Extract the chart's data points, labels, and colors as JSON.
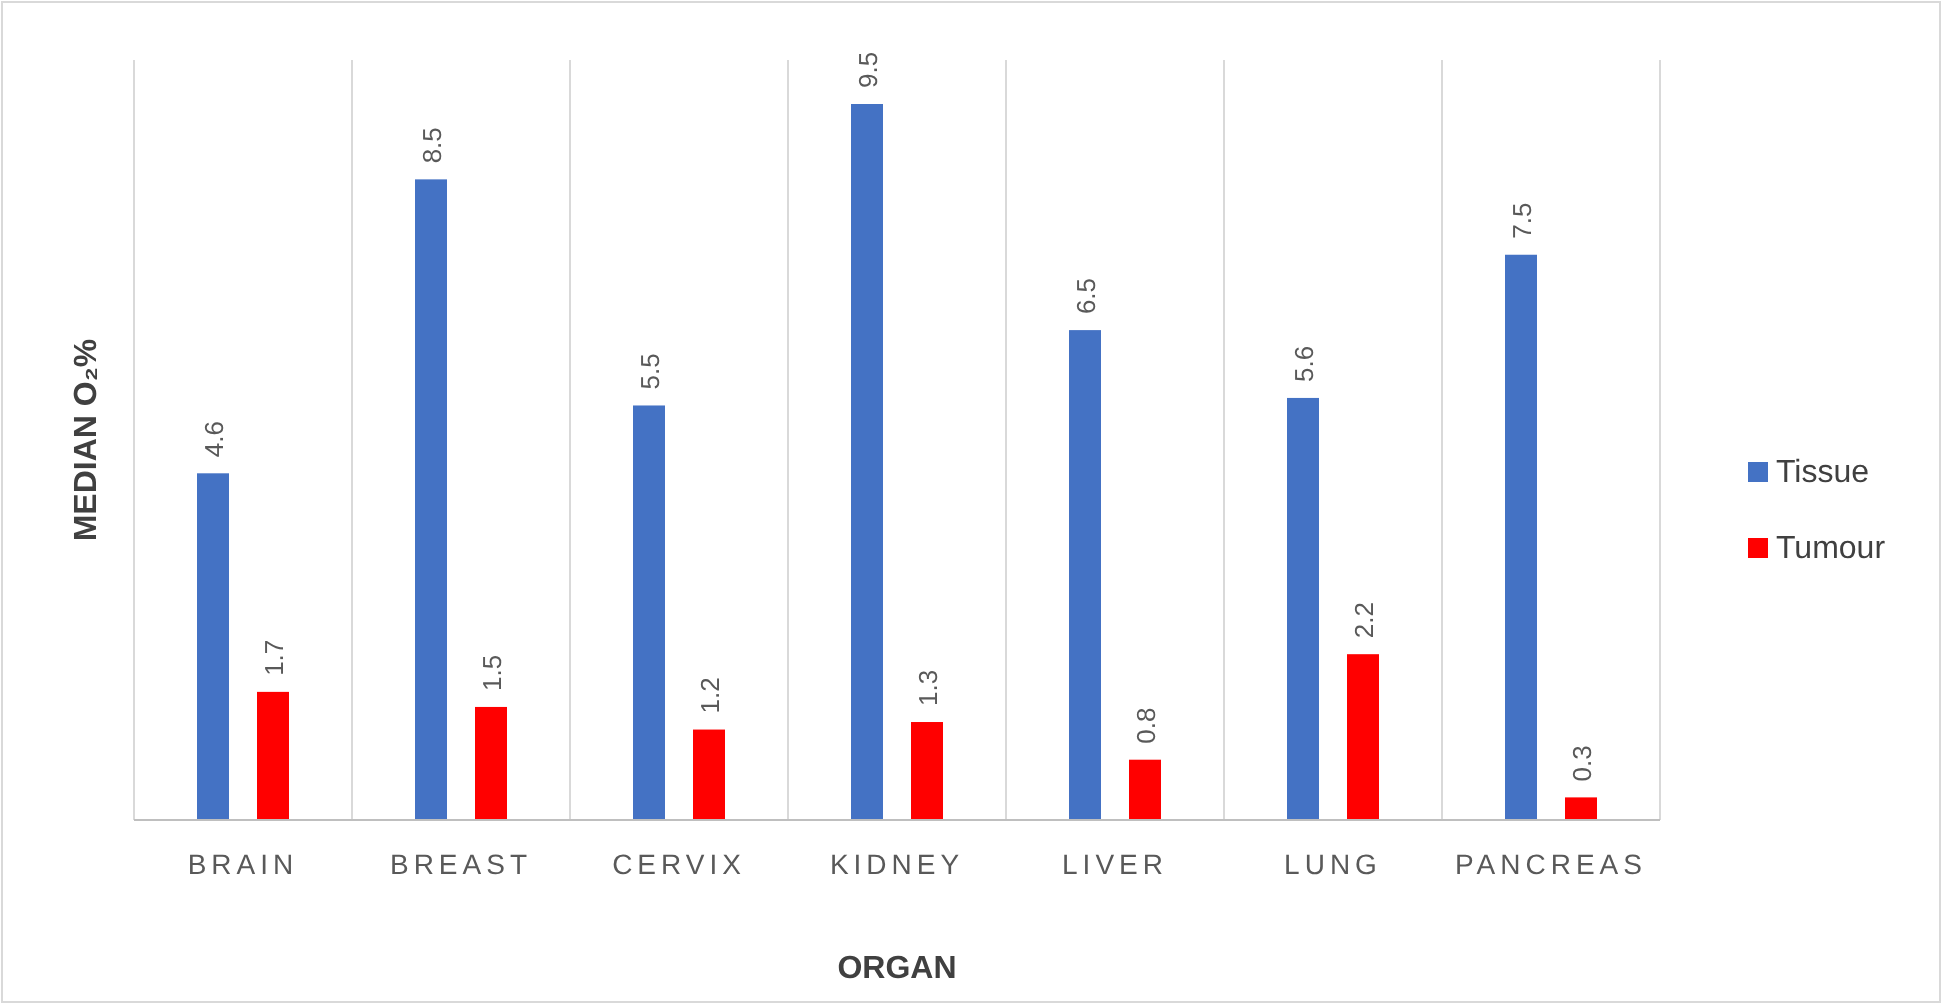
{
  "chart_data": {
    "type": "bar",
    "xlabel": "ORGAN",
    "ylabel": "MEDIAN O₂%",
    "categories": [
      "BRAIN",
      "BREAST",
      "CERVIX",
      "KIDNEY",
      "LIVER",
      "LUNG",
      "PANCREAS"
    ],
    "series": [
      {
        "name": "Tissue",
        "color": "#4472c4",
        "values": [
          4.6,
          8.5,
          5.5,
          9.5,
          6.5,
          5.6,
          7.5
        ]
      },
      {
        "name": "Tumour",
        "color": "#ff0000",
        "values": [
          1.7,
          1.5,
          1.2,
          1.3,
          0.8,
          2.2,
          0.3
        ]
      }
    ],
    "data_labels": true,
    "grid": "x",
    "legend": "right"
  }
}
